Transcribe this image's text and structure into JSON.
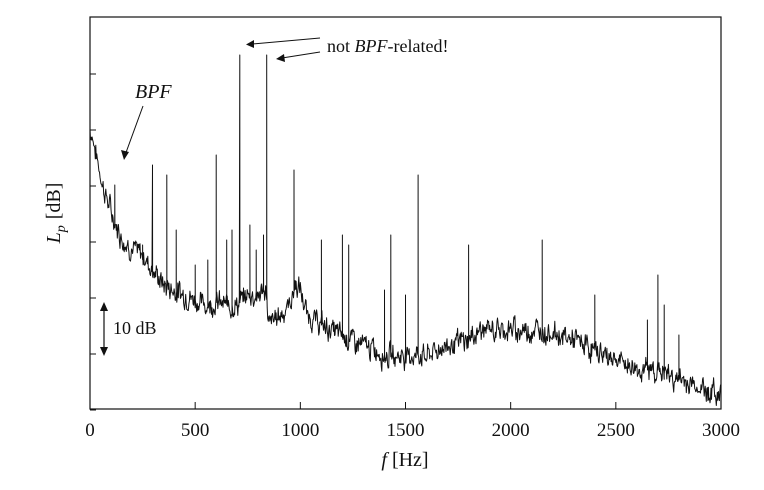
{
  "chart_data": {
    "type": "line",
    "title": "",
    "xlabel": {
      "italic": "f",
      "unit": "[Hz]"
    },
    "ylabel": {
      "symbol": "L",
      "subscript": "p",
      "unit": "[dB]"
    },
    "xlim": [
      0,
      3000
    ],
    "x_ticks": [
      0,
      500,
      1000,
      1500,
      2000,
      2500,
      3000
    ],
    "y_scale_note": "relative dB, no numeric tick labels",
    "scale_bar": {
      "label": "10 dB",
      "span_db": 10
    },
    "grid": false,
    "line_color": "#111111",
    "series": [
      {
        "floor": [
          [
            0,
            53
          ],
          [
            10,
            52
          ],
          [
            25,
            49
          ],
          [
            40,
            46
          ],
          [
            60,
            42
          ],
          [
            90,
            38
          ],
          [
            120,
            34
          ],
          [
            160,
            31
          ],
          [
            200,
            29
          ],
          [
            250,
            28
          ],
          [
            300,
            25
          ],
          [
            350,
            22
          ],
          [
            400,
            21
          ],
          [
            450,
            20
          ],
          [
            500,
            19
          ],
          [
            550,
            18
          ],
          [
            600,
            18.5
          ],
          [
            650,
            18
          ],
          [
            700,
            18
          ],
          [
            750,
            20
          ],
          [
            800,
            20
          ],
          [
            840,
            21
          ],
          [
            845,
            14
          ],
          [
            900,
            16
          ],
          [
            950,
            18
          ],
          [
            975,
            22
          ],
          [
            1000,
            21
          ],
          [
            1030,
            16
          ],
          [
            1100,
            14
          ],
          [
            1150,
            13
          ],
          [
            1200,
            12
          ],
          [
            1300,
            10
          ],
          [
            1400,
            8
          ],
          [
            1500,
            8
          ],
          [
            1600,
            8
          ],
          [
            1700,
            10
          ],
          [
            1800,
            11
          ],
          [
            1850,
            13
          ],
          [
            1900,
            13
          ],
          [
            2000,
            13
          ],
          [
            2100,
            13
          ],
          [
            2200,
            12.5
          ],
          [
            2300,
            11
          ],
          [
            2400,
            9
          ],
          [
            2500,
            7
          ],
          [
            2600,
            5
          ],
          [
            2700,
            5
          ],
          [
            2800,
            3
          ],
          [
            2900,
            1.5
          ],
          [
            3000,
            0
          ]
        ],
        "peaks": [
          [
            118,
            42
          ],
          [
            250,
            30
          ],
          [
            297,
            46
          ],
          [
            365,
            44
          ],
          [
            410,
            33
          ],
          [
            500,
            26
          ],
          [
            560,
            27
          ],
          [
            600,
            48
          ],
          [
            650,
            31
          ],
          [
            675,
            33
          ],
          [
            712,
            68
          ],
          [
            760,
            34
          ],
          [
            790,
            29
          ],
          [
            825,
            32
          ],
          [
            840,
            68
          ],
          [
            970,
            45
          ],
          [
            1100,
            31
          ],
          [
            1200,
            32
          ],
          [
            1230,
            30
          ],
          [
            1400,
            21
          ],
          [
            1430,
            32
          ],
          [
            1500,
            20
          ],
          [
            1560,
            44
          ],
          [
            1800,
            30
          ],
          [
            2150,
            31
          ],
          [
            2400,
            20
          ],
          [
            2650,
            15
          ],
          [
            2700,
            24
          ],
          [
            2730,
            18
          ],
          [
            2800,
            12
          ]
        ]
      }
    ],
    "annotations": [
      {
        "text_italic": "BPF",
        "target_x": 118,
        "target_y": 42
      },
      {
        "text_prefix": "not ",
        "text_italic": "BPF",
        "text_suffix": "-related!",
        "targets": [
          [
            712,
            68
          ],
          [
            840,
            68
          ]
        ]
      }
    ]
  }
}
